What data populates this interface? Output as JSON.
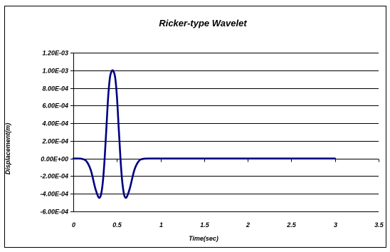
{
  "chart_data": {
    "type": "line",
    "title": "Ricker-type Wavelet",
    "xlabel": "Time(sec)",
    "ylabel": "Displacement(m)",
    "xlim": [
      0,
      3.5
    ],
    "ylim": [
      -0.0006,
      0.0012
    ],
    "x_ticks": [
      0,
      0.5,
      1,
      1.5,
      2,
      2.5,
      3,
      3.5
    ],
    "x_tick_labels": [
      "0",
      "0.5",
      "1",
      "1.5",
      "2",
      "2.5",
      "3",
      "3.5"
    ],
    "y_ticks": [
      0.0012,
      0.001,
      0.0008,
      0.0006,
      0.0004,
      0.0002,
      0,
      -0.0002,
      -0.0004,
      -0.0006
    ],
    "y_tick_labels": [
      "1.20E-03",
      "1.00E-03",
      "8.00E-04",
      "6.00E-04",
      "4.00E-04",
      "2.00E-04",
      "0.00E+00",
      "-2.00E-04",
      "-4.00E-04",
      "-6.00E-04"
    ],
    "grid": {
      "horizontal": true,
      "vertical": false
    },
    "line_color": "#000080",
    "series": [
      {
        "x": [
          0,
          0.05,
          0.1,
          0.15,
          0.2,
          0.25,
          0.28,
          0.3,
          0.32,
          0.34,
          0.36,
          0.38,
          0.4,
          0.42,
          0.44,
          0.45,
          0.46,
          0.48,
          0.5,
          0.52,
          0.54,
          0.56,
          0.58,
          0.6,
          0.62,
          0.65,
          0.7,
          0.75,
          0.8,
          0.9,
          1.0,
          1.5,
          2.0,
          2.5,
          3.0
        ],
        "values": [
          0,
          0,
          -4e-06,
          -3e-05,
          -0.00013,
          -0.00033,
          -0.00042,
          -0.000445,
          -0.0004,
          -0.00025,
          1e-05,
          0.00036,
          0.0007,
          0.00092,
          0.00099,
          0.001,
          0.00099,
          0.00092,
          0.0007,
          0.00036,
          1e-05,
          -0.00025,
          -0.0004,
          -0.000445,
          -0.00042,
          -0.00033,
          -0.00013,
          -3e-05,
          -4e-06,
          0,
          0,
          0,
          0,
          0,
          0
        ]
      }
    ]
  }
}
